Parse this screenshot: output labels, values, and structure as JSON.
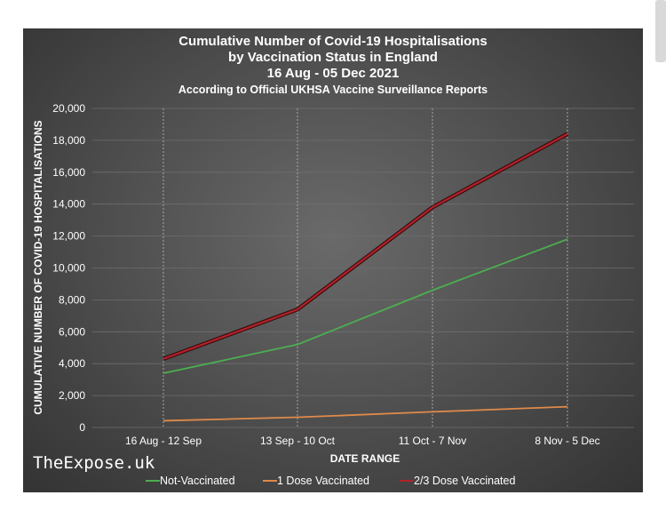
{
  "chart_data": {
    "type": "line",
    "title": [
      "Cumulative Number of Covid-19 Hospitalisations",
      "by Vaccination Status in England",
      "16 Aug - 05 Dec 2021"
    ],
    "subtitle": "According to Official UKHSA Vaccine Surveillance Reports",
    "xlabel": "DATE RANGE",
    "ylabel": "CUMULATIVE NUMBER OF COVID-19 HOSPITALISATIONS",
    "categories": [
      "16 Aug - 12 Sep",
      "13 Sep - 10 Oct",
      "11 Oct - 7 Nov",
      "8 Nov - 5 Dec"
    ],
    "ylim": [
      0,
      20000
    ],
    "yticks": [
      0,
      2000,
      4000,
      6000,
      8000,
      10000,
      12000,
      14000,
      16000,
      18000,
      20000
    ],
    "ytick_labels": [
      "0",
      "2,000",
      "4,000",
      "6,000",
      "8,000",
      "10,000",
      "12,000",
      "14,000",
      "16,000",
      "18,000",
      "20,000"
    ],
    "grid": true,
    "legend_position": "bottom",
    "series": [
      {
        "name": "Not-Vaccinated",
        "color": "#4caf50",
        "values": [
          3400,
          5200,
          8600,
          11800
        ]
      },
      {
        "name": "1 Dose Vaccinated",
        "color": "#e08a4a",
        "values": [
          420,
          640,
          980,
          1300
        ]
      },
      {
        "name": "2/3 Dose Vaccinated",
        "color": "#b0232a",
        "values": [
          4300,
          7400,
          13800,
          18400
        ]
      }
    ],
    "watermark": "TheExpose.uk"
  }
}
